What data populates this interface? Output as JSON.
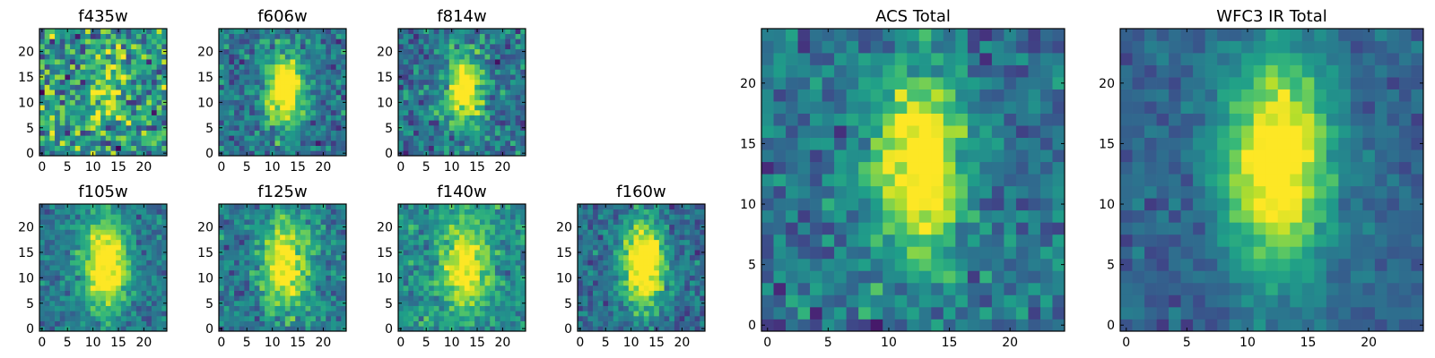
{
  "figure": {
    "description_hidden": false
  },
  "chart_data": [
    {
      "id": "f435w",
      "type": "heatmap",
      "title": "f435w",
      "colormap": "viridis",
      "grid_size": 25,
      "xlim": [
        -0.5,
        24.5
      ],
      "ylim": [
        -0.5,
        24.5
      ],
      "xticks": [
        0,
        5,
        10,
        15,
        20
      ],
      "yticks": [
        0,
        5,
        10,
        15,
        20
      ],
      "xtick_labels": [
        "0",
        "5",
        "10",
        "15",
        "20"
      ],
      "ytick_labels": [
        "0",
        "5",
        "10",
        "15",
        "20"
      ],
      "source_center": [
        13,
        13
      ],
      "source_sigma": [
        2.5,
        4.5
      ],
      "source_strength": 0.35,
      "noise": 0.42,
      "baseline": 0.52,
      "seed": 11
    },
    {
      "id": "f606w",
      "type": "heatmap",
      "title": "f606w",
      "colormap": "viridis",
      "grid_size": 25,
      "xlim": [
        -0.5,
        24.5
      ],
      "ylim": [
        -0.5,
        24.5
      ],
      "xticks": [
        0,
        5,
        10,
        15,
        20
      ],
      "yticks": [
        0,
        5,
        10,
        15,
        20
      ],
      "xtick_labels": [
        "0",
        "5",
        "10",
        "15",
        "20"
      ],
      "ytick_labels": [
        "0",
        "5",
        "10",
        "15",
        "20"
      ],
      "source_center": [
        12.5,
        12.5
      ],
      "source_sigma": [
        2.5,
        5.0
      ],
      "source_strength": 0.85,
      "noise": 0.24,
      "baseline": 0.38,
      "seed": 23
    },
    {
      "id": "f814w",
      "type": "heatmap",
      "title": "f814w",
      "colormap": "viridis",
      "grid_size": 25,
      "xlim": [
        -0.5,
        24.5
      ],
      "ylim": [
        -0.5,
        24.5
      ],
      "xticks": [
        0,
        5,
        10,
        15,
        20
      ],
      "yticks": [
        0,
        5,
        10,
        15,
        20
      ],
      "xtick_labels": [
        "0",
        "5",
        "10",
        "15",
        "20"
      ],
      "ytick_labels": [
        "0",
        "5",
        "10",
        "15",
        "20"
      ],
      "source_center": [
        12.5,
        12.5
      ],
      "source_sigma": [
        2.5,
        5.0
      ],
      "source_strength": 0.75,
      "noise": 0.26,
      "baseline": 0.38,
      "seed": 37
    },
    {
      "id": "f105w",
      "type": "heatmap",
      "title": "f105w",
      "colormap": "viridis",
      "grid_size": 25,
      "xlim": [
        -0.5,
        24.5
      ],
      "ylim": [
        -0.5,
        24.5
      ],
      "xticks": [
        0,
        5,
        10,
        15,
        20
      ],
      "yticks": [
        0,
        5,
        10,
        15,
        20
      ],
      "xtick_labels": [
        "0",
        "5",
        "10",
        "15",
        "20"
      ],
      "ytick_labels": [
        "0",
        "5",
        "10",
        "15",
        "20"
      ],
      "source_center": [
        12.5,
        12.5
      ],
      "source_sigma": [
        3.0,
        6.0
      ],
      "source_strength": 0.8,
      "noise": 0.18,
      "baseline": 0.4,
      "seed": 41
    },
    {
      "id": "f125w",
      "type": "heatmap",
      "title": "f125w",
      "colormap": "viridis",
      "grid_size": 25,
      "xlim": [
        -0.5,
        24.5
      ],
      "ylim": [
        -0.5,
        24.5
      ],
      "xticks": [
        0,
        5,
        10,
        15,
        20
      ],
      "yticks": [
        0,
        5,
        10,
        15,
        20
      ],
      "xtick_labels": [
        "0",
        "5",
        "10",
        "15",
        "20"
      ],
      "ytick_labels": [
        "0",
        "5",
        "10",
        "15",
        "20"
      ],
      "source_center": [
        12.5,
        12.5
      ],
      "source_sigma": [
        3.0,
        6.0
      ],
      "source_strength": 0.7,
      "noise": 0.22,
      "baseline": 0.42,
      "seed": 53
    },
    {
      "id": "f140w",
      "type": "heatmap",
      "title": "f140w",
      "colormap": "viridis",
      "grid_size": 25,
      "xlim": [
        -0.5,
        24.5
      ],
      "ylim": [
        -0.5,
        24.5
      ],
      "xticks": [
        0,
        5,
        10,
        15,
        20
      ],
      "yticks": [
        0,
        5,
        10,
        15,
        20
      ],
      "xtick_labels": [
        "0",
        "5",
        "10",
        "15",
        "20"
      ],
      "ytick_labels": [
        "0",
        "5",
        "10",
        "15",
        "20"
      ],
      "source_center": [
        12.5,
        12.5
      ],
      "source_sigma": [
        3.0,
        6.0
      ],
      "source_strength": 0.6,
      "noise": 0.2,
      "baseline": 0.5,
      "seed": 67
    },
    {
      "id": "f160w",
      "type": "heatmap",
      "title": "f160w",
      "colormap": "viridis",
      "grid_size": 25,
      "xlim": [
        -0.5,
        24.5
      ],
      "ylim": [
        -0.5,
        24.5
      ],
      "xticks": [
        0,
        5,
        10,
        15,
        20
      ],
      "yticks": [
        0,
        5,
        10,
        15,
        20
      ],
      "xtick_labels": [
        "0",
        "5",
        "10",
        "15",
        "20"
      ],
      "ytick_labels": [
        "0",
        "5",
        "10",
        "15",
        "20"
      ],
      "source_center": [
        12.5,
        12.5
      ],
      "source_sigma": [
        3.0,
        6.0
      ],
      "source_strength": 0.85,
      "noise": 0.2,
      "baseline": 0.35,
      "seed": 79
    },
    {
      "id": "acs_total",
      "type": "heatmap",
      "title": "ACS Total",
      "colormap": "viridis",
      "grid_size": 25,
      "xlim": [
        -0.5,
        24.5
      ],
      "ylim": [
        -0.5,
        24.5
      ],
      "xticks": [
        0,
        5,
        10,
        15,
        20
      ],
      "yticks": [
        0,
        5,
        10,
        15,
        20
      ],
      "xtick_labels": [
        "0",
        "5",
        "10",
        "15",
        "20"
      ],
      "ytick_labels": [
        "0",
        "5",
        "10",
        "15",
        "20"
      ],
      "source_center": [
        12.5,
        13.0
      ],
      "source_sigma": [
        2.5,
        5.0
      ],
      "source_strength": 0.8,
      "noise": 0.22,
      "baseline": 0.38,
      "seed": 97
    },
    {
      "id": "wfc3_ir_total",
      "type": "heatmap",
      "title": "WFC3 IR Total",
      "colormap": "viridis",
      "grid_size": 25,
      "xlim": [
        -0.5,
        24.5
      ],
      "ylim": [
        -0.5,
        24.5
      ],
      "xticks": [
        0,
        5,
        10,
        15,
        20
      ],
      "yticks": [
        0,
        5,
        10,
        15,
        20
      ],
      "xtick_labels": [
        "0",
        "5",
        "10",
        "15",
        "20"
      ],
      "ytick_labels": [
        "0",
        "5",
        "10",
        "15",
        "20"
      ],
      "source_center": [
        12.5,
        13.5
      ],
      "source_sigma": [
        3.0,
        6.0
      ],
      "source_strength": 0.85,
      "noise": 0.12,
      "baseline": 0.32,
      "seed": 113
    }
  ],
  "colors": {
    "viridis_stops": [
      "#440154",
      "#482878",
      "#3e4989",
      "#31688e",
      "#26828e",
      "#1f9e89",
      "#35b779",
      "#6ece58",
      "#b5de2b",
      "#fde725"
    ],
    "frame": "#000000",
    "background": "#ffffff"
  }
}
